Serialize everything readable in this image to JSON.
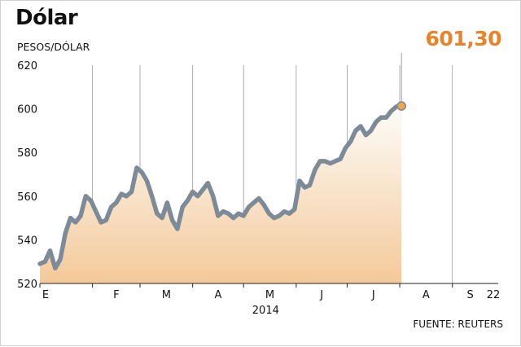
{
  "chart_data": {
    "type": "area",
    "title": "Dólar",
    "ylabel": "PESOS/DÓLAR",
    "source": "FUENTE: REUTERS",
    "last_value_label": "601,30",
    "year_label": "2014",
    "ylim": [
      520,
      620
    ],
    "yticks": [
      520,
      540,
      560,
      580,
      600,
      620
    ],
    "months": [
      {
        "label": "E",
        "start": 0
      },
      {
        "label": "F",
        "start": 31
      },
      {
        "label": "M",
        "start": 59
      },
      {
        "label": "A",
        "start": 90
      },
      {
        "label": "M",
        "start": 120
      },
      {
        "label": "J",
        "start": 151
      },
      {
        "label": "J",
        "start": 181
      },
      {
        "label": "A",
        "start": 212
      },
      {
        "label": "S",
        "start": 243
      },
      {
        "label": "22",
        "start": 264
      }
    ],
    "grid": "vertical month lines",
    "colors": {
      "line": "#7d8a97",
      "fill_top": "#fdfcf8",
      "fill_bottom": "#f4c99a",
      "marker": "#f0a54a",
      "accent": "#e8832a"
    },
    "x": [
      0,
      3,
      6,
      9,
      12,
      15,
      18,
      21,
      24,
      27,
      30,
      33,
      36,
      39,
      42,
      45,
      48,
      51,
      54,
      57,
      60,
      63,
      66,
      69,
      72,
      75,
      78,
      81,
      84,
      87,
      90,
      93,
      96,
      99,
      102,
      105,
      108,
      111,
      114,
      117,
      120,
      123,
      126,
      129,
      132,
      135,
      138,
      141,
      144,
      147,
      150,
      153,
      156,
      159,
      162,
      165,
      168,
      171,
      174,
      177,
      180,
      183,
      186,
      189,
      192,
      195,
      198,
      201,
      204,
      207,
      210,
      213,
      216,
      219,
      222,
      225,
      228,
      231,
      234,
      237,
      240,
      243,
      246,
      249,
      252,
      255,
      258,
      261,
      264
    ],
    "y": [
      529,
      530,
      535,
      527,
      531,
      543,
      550,
      548,
      551,
      560,
      558,
      553,
      548,
      549,
      555,
      557,
      561,
      560,
      562,
      573,
      571,
      567,
      560,
      552,
      550,
      557,
      549,
      545,
      555,
      558,
      562,
      560,
      563,
      566,
      560,
      551,
      553,
      552,
      550,
      552,
      551,
      555,
      557,
      559,
      556,
      552,
      550,
      551,
      553,
      552,
      554,
      567,
      564,
      565,
      572,
      576,
      576,
      575,
      576,
      577,
      582,
      585,
      590,
      592,
      588,
      590,
      594,
      596,
      596,
      599,
      601,
      601.3,
      601.3,
      601.3,
      601.3,
      601.3,
      601.3,
      601.3,
      601.3,
      601.3,
      601.3,
      601.3,
      601.3,
      601.3,
      601.3,
      601.3,
      601.3,
      601.3,
      601.3
    ]
  }
}
